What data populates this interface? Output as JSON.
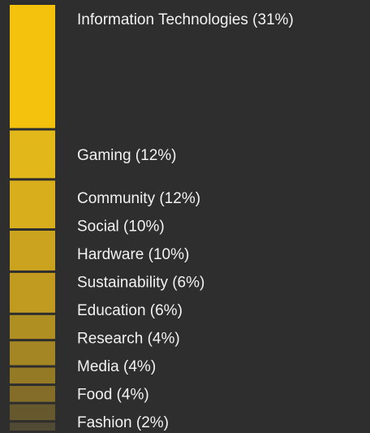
{
  "chart_data": {
    "type": "bar",
    "orientation": "stacked-vertical",
    "title": "",
    "categories": [
      "Information Technologies",
      "Gaming",
      "Community",
      "Social",
      "Hardware",
      "Sustainability",
      "Education",
      "Research",
      "Media",
      "Food",
      "Fashion"
    ],
    "values": [
      31,
      12,
      12,
      10,
      10,
      6,
      6,
      4,
      4,
      4,
      2
    ],
    "labels": [
      "Information Technologies (31%)",
      "Gaming (12%)",
      "Community (12%)",
      "Social (10%)",
      "Hardware (10%)",
      "Sustainability (6%)",
      "Education (6%)",
      "Research (4%)",
      "Media (4%)",
      "Food (4%)",
      "Fashion (2%)"
    ],
    "colors": [
      "#f4c20d",
      "#e2b71a",
      "#d8ae1c",
      "#cca31f",
      "#c19b20",
      "#b08f22",
      "#a48624",
      "#957a26",
      "#836d28",
      "#66592e",
      "#514b35"
    ],
    "unit": "%",
    "legend": "none",
    "grid": false
  }
}
